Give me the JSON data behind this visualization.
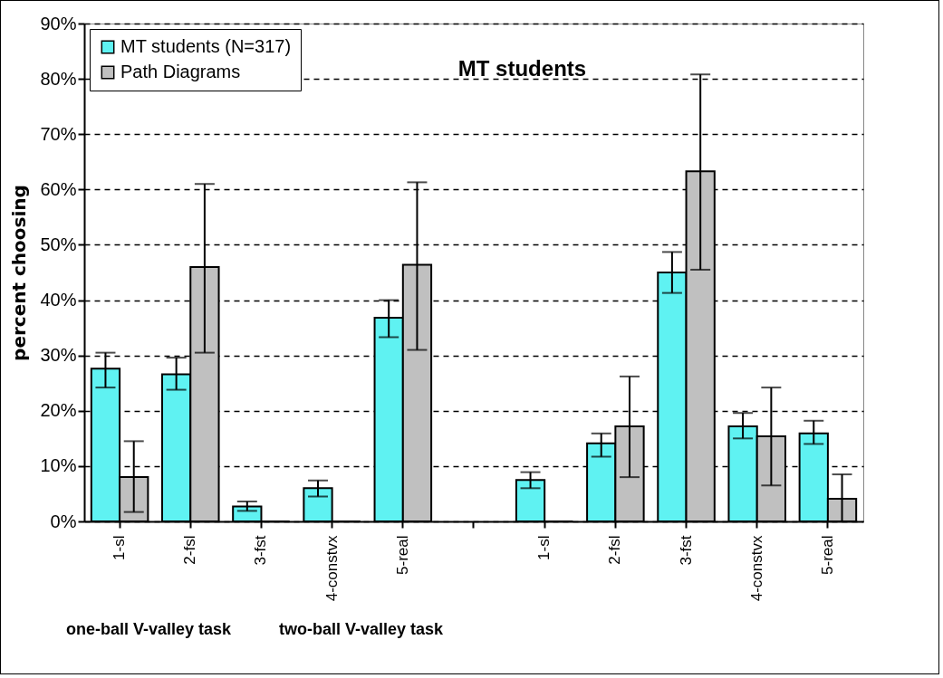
{
  "chart_data": {
    "type": "bar",
    "ylabel": "percent choosing",
    "categories": [
      "1-sl",
      "2-fsl",
      "3-fst",
      "4-constvx",
      "5-real",
      null,
      "1-sl",
      "2-fsl",
      "3-fst",
      "4-constvx",
      "5-real"
    ],
    "series": [
      {
        "name": "MT students (N=317)",
        "color": "#5ff2f2",
        "values": [
          27.6,
          26.6,
          2.7,
          6.0,
          36.8,
          null,
          7.5,
          14.1,
          45.0,
          17.2,
          15.9
        ],
        "errors": [
          [
            24.2,
            30.5
          ],
          [
            23.8,
            29.6
          ],
          [
            1.9,
            3.6
          ],
          [
            4.5,
            7.4
          ],
          [
            33.3,
            40.0
          ],
          null,
          [
            6.0,
            8.9
          ],
          [
            11.7,
            15.9
          ],
          [
            41.3,
            48.7
          ],
          [
            15.0,
            19.6
          ],
          [
            14.0,
            18.2
          ]
        ]
      },
      {
        "name": "Path Diagrams",
        "color": "#c0c0c0",
        "values": [
          8.0,
          46.0,
          0,
          0,
          46.4,
          null,
          0,
          17.2,
          63.3,
          15.4,
          4.1
        ],
        "errors": [
          [
            1.7,
            14.5
          ],
          [
            30.5,
            61.0
          ],
          null,
          null,
          [
            31.0,
            61.3
          ],
          null,
          null,
          [
            8.0,
            26.2
          ],
          [
            45.5,
            80.8
          ],
          [
            6.5,
            24.2
          ],
          [
            0,
            8.5
          ]
        ]
      }
    ],
    "ylim": [
      0,
      90
    ],
    "yticks": [
      {
        "value": 0,
        "label": "0%"
      },
      {
        "value": 10,
        "label": "10%"
      },
      {
        "value": 20,
        "label": "20%"
      },
      {
        "value": 30,
        "label": "30%"
      },
      {
        "value": 40,
        "label": "40%"
      },
      {
        "value": 50,
        "label": "50%"
      },
      {
        "value": 60,
        "label": "60%"
      },
      {
        "value": 70,
        "label": "70%"
      },
      {
        "value": 80,
        "label": "80%"
      },
      {
        "value": 90,
        "label": "90%"
      }
    ],
    "grid": "y",
    "legend": "top left",
    "annotations": [
      "MT students",
      "one-ball V-valley task",
      "two-ball V-valley task"
    ]
  }
}
